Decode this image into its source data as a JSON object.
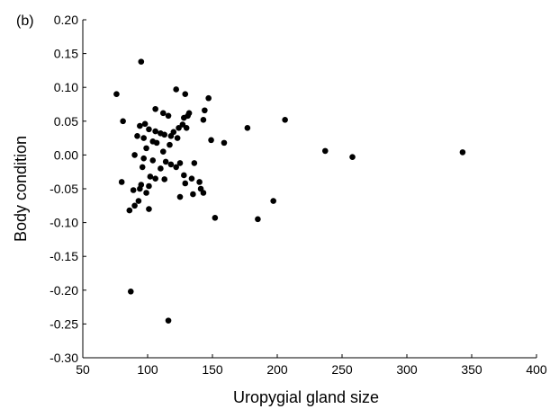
{
  "chart_data": {
    "type": "scatter",
    "panel_label": "(b)",
    "xlabel": "Uropygial gland size",
    "ylabel": "Body condition",
    "xlim": [
      50,
      400
    ],
    "ylim": [
      -0.3,
      0.2
    ],
    "x_ticks": [
      50,
      100,
      150,
      200,
      250,
      300,
      350,
      400
    ],
    "y_ticks": [
      0.2,
      0.15,
      0.1,
      0.05,
      0.0,
      -0.05,
      -0.1,
      -0.15,
      -0.2,
      -0.25,
      -0.3
    ],
    "x_tick_labels": [
      "50",
      "100",
      "150",
      "200",
      "250",
      "300",
      "350",
      "400"
    ],
    "y_tick_labels": [
      "0.20",
      "0.15",
      "0.10",
      "0.05",
      "0.00",
      "-0.05",
      "-0.10",
      "-0.15",
      "-0.20",
      "-0.25",
      "-0.30"
    ],
    "grid": false,
    "marker_color": "#000000",
    "points": [
      {
        "x": 95,
        "y": 0.138
      },
      {
        "x": 76,
        "y": 0.09
      },
      {
        "x": 122,
        "y": 0.097
      },
      {
        "x": 129,
        "y": 0.09
      },
      {
        "x": 147,
        "y": 0.084
      },
      {
        "x": 106,
        "y": 0.068
      },
      {
        "x": 112,
        "y": 0.062
      },
      {
        "x": 116,
        "y": 0.058
      },
      {
        "x": 132,
        "y": 0.062
      },
      {
        "x": 144,
        "y": 0.066
      },
      {
        "x": 81,
        "y": 0.05
      },
      {
        "x": 98,
        "y": 0.046
      },
      {
        "x": 94,
        "y": 0.043
      },
      {
        "x": 128,
        "y": 0.055
      },
      {
        "x": 131,
        "y": 0.058
      },
      {
        "x": 143,
        "y": 0.052
      },
      {
        "x": 206,
        "y": 0.052
      },
      {
        "x": 101,
        "y": 0.038
      },
      {
        "x": 106,
        "y": 0.035
      },
      {
        "x": 113,
        "y": 0.03
      },
      {
        "x": 120,
        "y": 0.034
      },
      {
        "x": 124,
        "y": 0.04
      },
      {
        "x": 127,
        "y": 0.045
      },
      {
        "x": 130,
        "y": 0.04
      },
      {
        "x": 177,
        "y": 0.04
      },
      {
        "x": 92,
        "y": 0.028
      },
      {
        "x": 97,
        "y": 0.025
      },
      {
        "x": 110,
        "y": 0.032
      },
      {
        "x": 118,
        "y": 0.028
      },
      {
        "x": 123,
        "y": 0.025
      },
      {
        "x": 104,
        "y": 0.02
      },
      {
        "x": 107,
        "y": 0.018
      },
      {
        "x": 117,
        "y": 0.015
      },
      {
        "x": 149,
        "y": 0.022
      },
      {
        "x": 159,
        "y": 0.018
      },
      {
        "x": 99,
        "y": 0.01
      },
      {
        "x": 112,
        "y": 0.005
      },
      {
        "x": 237,
        "y": 0.006
      },
      {
        "x": 343,
        "y": 0.004
      },
      {
        "x": 258,
        "y": -0.003
      },
      {
        "x": 90,
        "y": 0.0
      },
      {
        "x": 97,
        "y": -0.005
      },
      {
        "x": 104,
        "y": -0.008
      },
      {
        "x": 114,
        "y": -0.01
      },
      {
        "x": 118,
        "y": -0.014
      },
      {
        "x": 125,
        "y": -0.012
      },
      {
        "x": 136,
        "y": -0.012
      },
      {
        "x": 96,
        "y": -0.018
      },
      {
        "x": 110,
        "y": -0.02
      },
      {
        "x": 122,
        "y": -0.018
      },
      {
        "x": 80,
        "y": -0.04
      },
      {
        "x": 102,
        "y": -0.032
      },
      {
        "x": 106,
        "y": -0.035
      },
      {
        "x": 113,
        "y": -0.036
      },
      {
        "x": 128,
        "y": -0.03
      },
      {
        "x": 134,
        "y": -0.035
      },
      {
        "x": 140,
        "y": -0.04
      },
      {
        "x": 95,
        "y": -0.044
      },
      {
        "x": 101,
        "y": -0.046
      },
      {
        "x": 129,
        "y": -0.042
      },
      {
        "x": 141,
        "y": -0.05
      },
      {
        "x": 89,
        "y": -0.052
      },
      {
        "x": 94,
        "y": -0.05
      },
      {
        "x": 99,
        "y": -0.056
      },
      {
        "x": 135,
        "y": -0.058
      },
      {
        "x": 143,
        "y": -0.056
      },
      {
        "x": 125,
        "y": -0.062
      },
      {
        "x": 93,
        "y": -0.068
      },
      {
        "x": 197,
        "y": -0.068
      },
      {
        "x": 90,
        "y": -0.075
      },
      {
        "x": 86,
        "y": -0.082
      },
      {
        "x": 101,
        "y": -0.08
      },
      {
        "x": 152,
        "y": -0.093
      },
      {
        "x": 185,
        "y": -0.095
      },
      {
        "x": 87,
        "y": -0.202
      },
      {
        "x": 116,
        "y": -0.245
      }
    ]
  }
}
